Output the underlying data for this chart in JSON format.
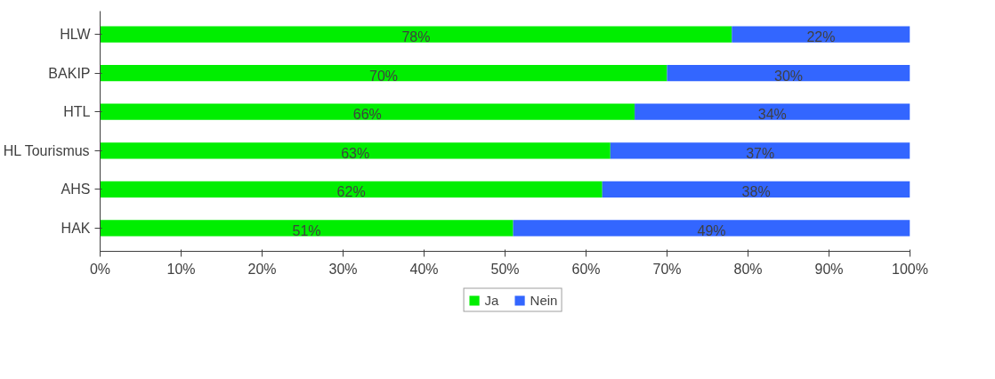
{
  "chart_data": {
    "type": "bar",
    "orientation": "horizontal",
    "stacked": true,
    "categories": [
      "HLW",
      "BAKIP",
      "HTL",
      "HL Tourismus",
      "AHS",
      "HAK"
    ],
    "series": [
      {
        "name": "Ja",
        "color": "#00ee00",
        "values": [
          78,
          70,
          66,
          63,
          62,
          51
        ],
        "value_labels": [
          "78%",
          "70%",
          "66%",
          "63%",
          "62%",
          "51%"
        ]
      },
      {
        "name": "Nein",
        "color": "#3366ff",
        "values": [
          22,
          30,
          34,
          37,
          38,
          49
        ],
        "value_labels": [
          "22%",
          "30%",
          "34%",
          "37%",
          "38%",
          "49%"
        ]
      }
    ],
    "xlim": [
      0,
      100
    ],
    "xticks": [
      {
        "value": 0,
        "label": "0%"
      },
      {
        "value": 10,
        "label": "10%"
      },
      {
        "value": 20,
        "label": "20%"
      },
      {
        "value": 30,
        "label": "30%"
      },
      {
        "value": 40,
        "label": "40%"
      },
      {
        "value": 50,
        "label": "50%"
      },
      {
        "value": 60,
        "label": "60%"
      },
      {
        "value": 70,
        "label": "70%"
      },
      {
        "value": 80,
        "label": "80%"
      },
      {
        "value": 90,
        "label": "90%"
      },
      {
        "value": 100,
        "label": "100%"
      }
    ],
    "grid": false,
    "legend": "bottom"
  }
}
